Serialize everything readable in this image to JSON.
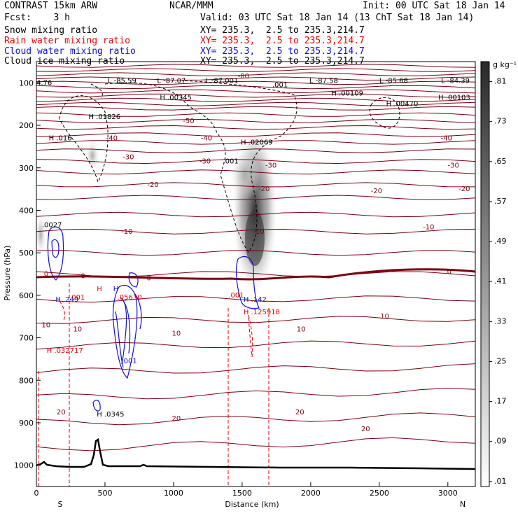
{
  "header": {
    "title_left": "CONTRAST 15km ARW",
    "title_center": "NCAR/MMM",
    "init": "Init: 00 UTC Sat 18 Jan 14",
    "fcst": "Fcst:    3 h",
    "valid": "Valid: 03 UTC Sat 18 Jan 14 (13 ChT Sat 18 Jan 14)"
  },
  "legend": [
    {
      "label": "Snow mixing ratio",
      "xy": "XY= 235.3,  2.5 to 235.3,214.7",
      "color": "#000000"
    },
    {
      "label": "Rain water mixing ratio",
      "xy": "XY= 235.3,  2.5 to 235.3,214.7",
      "color": "#e00000"
    },
    {
      "label": "Cloud water mixing ratio",
      "xy": "XY= 235.3,  2.5 to 235.3,214.7",
      "color": "#1010d0"
    },
    {
      "label": "Cloud ice mixing ratio",
      "xy": "XY= 235.3,  2.5 to 235.3,214.7",
      "color": "#000000"
    }
  ],
  "chart_data": {
    "type": "heatmap",
    "xlabel": "Distance (km)",
    "ylabel": "Pressure (hPa)",
    "xlim": [
      0,
      3200
    ],
    "ylim": [
      1050,
      50
    ],
    "x_ticks": [
      "0",
      "500",
      "1000",
      "1500",
      "2000",
      "2500",
      "3000"
    ],
    "x_tick_values": [
      0,
      500,
      1000,
      1500,
      2000,
      2500,
      3000
    ],
    "y_ticks": [
      "100",
      "200",
      "300",
      "400",
      "500",
      "600",
      "700",
      "800",
      "900",
      "1000"
    ],
    "y_tick_values": [
      100,
      200,
      300,
      400,
      500,
      600,
      700,
      800,
      900,
      1000
    ],
    "x_end_left": "S",
    "x_end_right": "N",
    "colorbar": {
      "unit": "g kg⁻¹",
      "labels": [
        ".01",
        ".09",
        ".17",
        ".25",
        ".33",
        ".41",
        ".49",
        ".57",
        ".65",
        ".73",
        ".81"
      ],
      "values": [
        0.01,
        0.09,
        0.17,
        0.25,
        0.33,
        0.41,
        0.49,
        0.57,
        0.65,
        0.73,
        0.81
      ]
    },
    "shaded_field": [
      {
        "x": 1560,
        "y": 420,
        "value": 0.73
      },
      {
        "x": 1500,
        "y": 280,
        "value": 0.33
      },
      {
        "x": 410,
        "y": 230,
        "value": 0.17
      },
      {
        "x": 30,
        "y": 440,
        "value": 0.09
      }
    ],
    "temperature_contours": [
      {
        "label": "-80",
        "x": 1510,
        "y": 85
      },
      {
        "label": "-50",
        "x": 1110,
        "y": 190
      },
      {
        "label": "-40",
        "x": 550,
        "y": 230
      },
      {
        "label": "-40",
        "x": 1240,
        "y": 230
      },
      {
        "label": "-40",
        "x": 2990,
        "y": 230
      },
      {
        "label": "-30",
        "x": 670,
        "y": 275
      },
      {
        "label": "-30",
        "x": 1230,
        "y": 285
      },
      {
        "label": "-30",
        "x": 1710,
        "y": 295
      },
      {
        "label": "-30",
        "x": 3040,
        "y": 295
      },
      {
        "label": "-20",
        "x": 850,
        "y": 340
      },
      {
        "label": "-20",
        "x": 1660,
        "y": 350
      },
      {
        "label": "-20",
        "x": 2480,
        "y": 355
      },
      {
        "label": "-20",
        "x": 3120,
        "y": 350
      },
      {
        "label": "-10",
        "x": 660,
        "y": 450
      },
      {
        "label": "-10",
        "x": 1620,
        "y": 450
      },
      {
        "label": "-10",
        "x": 2860,
        "y": 440
      },
      {
        "label": "0",
        "x": 340,
        "y": 555
      },
      {
        "label": "0",
        "x": 820,
        "y": 560
      },
      {
        "label": "0",
        "x": 3010,
        "y": 545
      },
      {
        "label": "10",
        "x": 70,
        "y": 670
      },
      {
        "label": "10",
        "x": 300,
        "y": 680
      },
      {
        "label": "10",
        "x": 1020,
        "y": 690
      },
      {
        "label": "10",
        "x": 1930,
        "y": 680
      },
      {
        "label": "10",
        "x": 2540,
        "y": 650
      },
      {
        "label": "20",
        "x": 180,
        "y": 875
      },
      {
        "label": "20",
        "x": 1020,
        "y": 890
      },
      {
        "label": "20",
        "x": 1920,
        "y": 875
      },
      {
        "label": "20",
        "x": 2400,
        "y": 915
      }
    ],
    "ice_extrema": [
      {
        "label": "L -85.59",
        "x": 520,
        "y": 100
      },
      {
        "label": "L -87.07",
        "x": 880,
        "y": 100
      },
      {
        "label": "L -87.001",
        "x": 1230,
        "y": 100
      },
      {
        "label": "L -87.58",
        "x": 1990,
        "y": 100
      },
      {
        "label": "L -85.68",
        "x": 2500,
        "y": 100
      },
      {
        "label": "L -84.39",
        "x": 2950,
        "y": 100
      },
      {
        "label": "H .00345",
        "x": 900,
        "y": 140
      },
      {
        "label": "H .00109",
        "x": 2150,
        "y": 130
      },
      {
        "label": "H .00470",
        "x": 2550,
        "y": 155
      },
      {
        "label": "H .00103",
        "x": 2930,
        "y": 140
      },
      {
        "label": "H .01826",
        "x": 380,
        "y": 185
      },
      {
        "label": "H .016",
        "x": 90,
        "y": 235
      },
      {
        "label": "H .02069",
        "x": 1490,
        "y": 245
      },
      {
        "label": "H .0345",
        "x": 440,
        "y": 885
      },
      {
        "label": "4.76",
        "x": 0,
        "y": 105
      },
      {
        "label": ".001",
        "x": 1720,
        "y": 110
      },
      {
        "label": ".001",
        "x": 1360,
        "y": 290
      },
      {
        "label": ".0027",
        "x": 40,
        "y": 440
      }
    ],
    "rain_extrema": [
      {
        "label": "H .032717",
        "x": 75,
        "y": 735
      },
      {
        "label": "H .125918",
        "x": 1510,
        "y": 645
      },
      {
        "label": "0",
        "x": 55,
        "y": 555
      },
      {
        "label": ".001",
        "x": 240,
        "y": 610
      },
      {
        "label": ".001",
        "x": 1400,
        "y": 605
      },
      {
        "label": "H",
        "x": 440,
        "y": 590
      },
      {
        "label": ".05630",
        "x": 590,
        "y": 610
      }
    ],
    "cloud_extrema": [
      {
        "label": "H .249",
        "x": 140,
        "y": 615
      },
      {
        "label": "H .142",
        "x": 1510,
        "y": 615
      },
      {
        "label": "H",
        "x": 560,
        "y": 590
      },
      {
        "label": ".001",
        "x": 620,
        "y": 760
      }
    ],
    "terrain_line": "black surface pressure trace near 1000 hPa with peak at about 440 km"
  }
}
